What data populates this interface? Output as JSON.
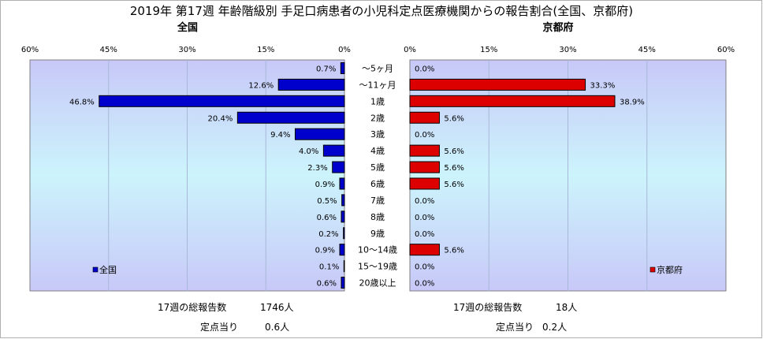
{
  "chart_data": {
    "type": "bar",
    "orientation": "horizontal",
    "title": "2019年 第17週 年齢階級別 手足口病患者の小児科定点医療機関からの報告割合(全国、京都府)",
    "categories": [
      "～5ヶ月",
      "～11ヶ月",
      "1歳",
      "2歳",
      "3歳",
      "4歳",
      "5歳",
      "6歳",
      "7歳",
      "8歳",
      "9歳",
      "10～14歳",
      "15～19歳",
      "20歳以上"
    ],
    "xlim": [
      0,
      60
    ],
    "ticks": [
      "0%",
      "15%",
      "30%",
      "45%",
      "60%"
    ],
    "tick_values": [
      0,
      15,
      30,
      45,
      60
    ],
    "series": [
      {
        "name": "全国",
        "panel_title": "全国",
        "color": "#0000cc",
        "values": [
          0.7,
          12.6,
          46.8,
          20.4,
          9.4,
          4.0,
          2.3,
          0.9,
          0.5,
          0.6,
          0.2,
          0.9,
          0.1,
          0.6
        ],
        "labels": [
          "0.7%",
          "12.6%",
          "46.8%",
          "20.4%",
          "9.4%",
          "4.0%",
          "2.3%",
          "0.9%",
          "0.5%",
          "0.6%",
          "0.2%",
          "0.9%",
          "0.1%",
          "0.6%"
        ],
        "legend": "全国",
        "footer": {
          "total_label": "17週の総報告数",
          "total_value": "1746人",
          "per_label": "定点当り",
          "per_value": "0.6人"
        }
      },
      {
        "name": "京都府",
        "panel_title": "京都府",
        "color": "#dd0000",
        "values": [
          0.0,
          33.3,
          38.9,
          5.6,
          0.0,
          5.6,
          5.6,
          5.6,
          0.0,
          0.0,
          0.0,
          5.6,
          0.0,
          0.0
        ],
        "labels": [
          "0.0%",
          "33.3%",
          "38.9%",
          "5.6%",
          "0.0%",
          "5.6%",
          "5.6%",
          "5.6%",
          "0.0%",
          "0.0%",
          "0.0%",
          "5.6%",
          "0.0%",
          "0.0%"
        ],
        "legend": "京都府",
        "footer": {
          "total_label": "17週の総報告数",
          "total_value": "18人",
          "per_label": "定点当り",
          "per_value": "0.2人"
        }
      }
    ]
  }
}
